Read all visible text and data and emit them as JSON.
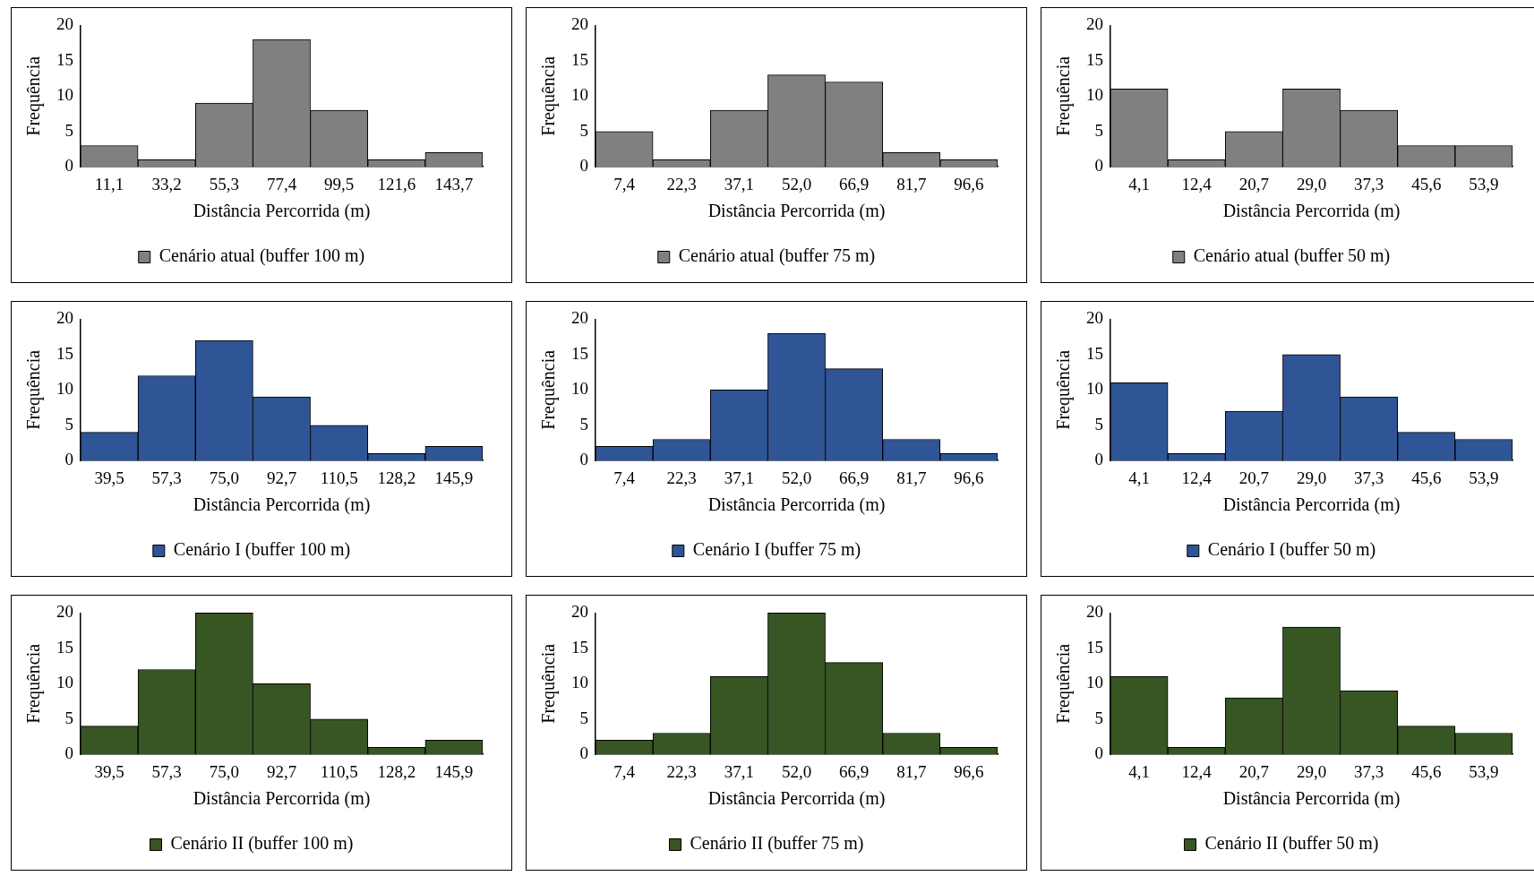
{
  "chart_data": [
    {
      "type": "bar",
      "categories": [
        "11,1",
        "33,2",
        "55,3",
        "77,4",
        "99,5",
        "121,6",
        "143,7"
      ],
      "xlabel": "Distância Percorrida (m)",
      "ylabel": "Frequência",
      "ylim": [
        0,
        20
      ],
      "yticks": [
        0,
        5,
        10,
        15,
        20
      ],
      "grid": false,
      "legend": "bottom",
      "series": [
        {
          "name": "Cenário atual (buffer 100 m)",
          "color": "#808080",
          "values": [
            3,
            1,
            9,
            18,
            8,
            1,
            2
          ]
        }
      ]
    },
    {
      "type": "bar",
      "categories": [
        "7,4",
        "22,3",
        "37,1",
        "52,0",
        "66,9",
        "81,7",
        "96,6"
      ],
      "xlabel": "Distância Percorrida (m)",
      "ylabel": "Frequência",
      "ylim": [
        0,
        20
      ],
      "yticks": [
        0,
        5,
        10,
        15,
        20
      ],
      "grid": false,
      "legend": "bottom",
      "series": [
        {
          "name": "Cenário atual (buffer 75 m)",
          "color": "#808080",
          "values": [
            5,
            1,
            8,
            13,
            12,
            2,
            1
          ]
        }
      ]
    },
    {
      "type": "bar",
      "categories": [
        "4,1",
        "12,4",
        "20,7",
        "29,0",
        "37,3",
        "45,6",
        "53,9"
      ],
      "xlabel": "Distância Percorrida (m)",
      "ylabel": "Frequência",
      "ylim": [
        0,
        20
      ],
      "yticks": [
        0,
        5,
        10,
        15,
        20
      ],
      "grid": false,
      "legend": "bottom",
      "series": [
        {
          "name": "Cenário atual (buffer 50 m)",
          "color": "#808080",
          "values": [
            11,
            1,
            5,
            11,
            8,
            3,
            3
          ]
        }
      ]
    },
    {
      "type": "bar",
      "categories": [
        "39,5",
        "57,3",
        "75,0",
        "92,7",
        "110,5",
        "128,2",
        "145,9"
      ],
      "xlabel": "Distância Percorrida (m)",
      "ylabel": "Frequência",
      "ylim": [
        0,
        20
      ],
      "yticks": [
        0,
        5,
        10,
        15,
        20
      ],
      "grid": false,
      "legend": "bottom",
      "series": [
        {
          "name": "Cenário I (buffer 100 m)",
          "color": "#2f5597",
          "values": [
            4,
            12,
            17,
            9,
            5,
            1,
            2
          ]
        }
      ]
    },
    {
      "type": "bar",
      "categories": [
        "7,4",
        "22,3",
        "37,1",
        "52,0",
        "66,9",
        "81,7",
        "96,6"
      ],
      "xlabel": "Distância Percorrida (m)",
      "ylabel": "Frequência",
      "ylim": [
        0,
        20
      ],
      "yticks": [
        0,
        5,
        10,
        15,
        20
      ],
      "grid": false,
      "legend": "bottom",
      "series": [
        {
          "name": "Cenário I (buffer 75 m)",
          "color": "#2f5597",
          "values": [
            2,
            3,
            10,
            18,
            13,
            3,
            1
          ]
        }
      ]
    },
    {
      "type": "bar",
      "categories": [
        "4,1",
        "12,4",
        "20,7",
        "29,0",
        "37,3",
        "45,6",
        "53,9"
      ],
      "xlabel": "Distância Percorrida (m)",
      "ylabel": "Frequência",
      "ylim": [
        0,
        20
      ],
      "yticks": [
        0,
        5,
        10,
        15,
        20
      ],
      "grid": false,
      "legend": "bottom",
      "series": [
        {
          "name": "Cenário I (buffer 50 m)",
          "color": "#2f5597",
          "values": [
            11,
            1,
            7,
            15,
            9,
            4,
            3
          ]
        }
      ]
    },
    {
      "type": "bar",
      "categories": [
        "39,5",
        "57,3",
        "75,0",
        "92,7",
        "110,5",
        "128,2",
        "145,9"
      ],
      "xlabel": "Distância Percorrida (m)",
      "ylabel": "Frequência",
      "ylim": [
        0,
        20
      ],
      "yticks": [
        0,
        5,
        10,
        15,
        20
      ],
      "grid": false,
      "legend": "bottom",
      "series": [
        {
          "name": "Cenário II (buffer 100 m)",
          "color": "#375623",
          "values": [
            4,
            12,
            20,
            10,
            5,
            1,
            2
          ]
        }
      ]
    },
    {
      "type": "bar",
      "categories": [
        "7,4",
        "22,3",
        "37,1",
        "52,0",
        "66,9",
        "81,7",
        "96,6"
      ],
      "xlabel": "Distância Percorrida (m)",
      "ylabel": "Frequência",
      "ylim": [
        0,
        20
      ],
      "yticks": [
        0,
        5,
        10,
        15,
        20
      ],
      "grid": false,
      "legend": "bottom",
      "series": [
        {
          "name": "Cenário II (buffer 75 m)",
          "color": "#375623",
          "values": [
            2,
            3,
            11,
            20,
            13,
            3,
            1
          ]
        }
      ]
    },
    {
      "type": "bar",
      "categories": [
        "4,1",
        "12,4",
        "20,7",
        "29,0",
        "37,3",
        "45,6",
        "53,9"
      ],
      "xlabel": "Distância Percorrida (m)",
      "ylabel": "Frequência",
      "ylim": [
        0,
        20
      ],
      "yticks": [
        0,
        5,
        10,
        15,
        20
      ],
      "grid": false,
      "legend": "bottom",
      "series": [
        {
          "name": "Cenário II (buffer 50 m)",
          "color": "#375623",
          "values": [
            11,
            1,
            8,
            18,
            9,
            4,
            3
          ]
        }
      ]
    }
  ]
}
